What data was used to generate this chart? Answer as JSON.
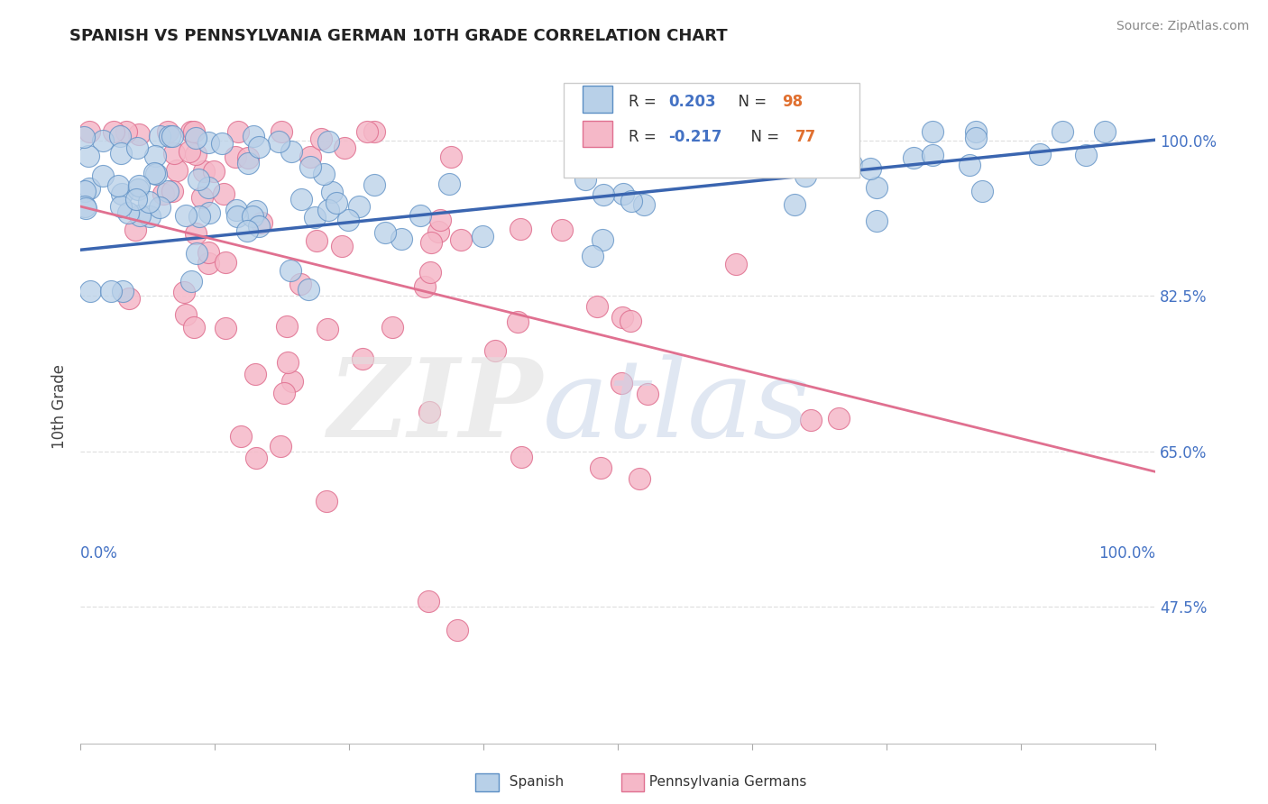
{
  "title": "SPANISH VS PENNSYLVANIA GERMAN 10TH GRADE CORRELATION CHART",
  "source": "Source: ZipAtlas.com",
  "ylabel": "10th Grade",
  "ytick_vals": [
    0.475,
    0.65,
    0.825,
    1.0
  ],
  "ytick_labels": [
    "47.5%",
    "65.0%",
    "82.5%",
    "100.0%"
  ],
  "xrange": [
    0.0,
    1.0
  ],
  "yrange": [
    0.32,
    1.08
  ],
  "legend_text_spanish": "R = ",
  "legend_r_spanish": "0.203",
  "legend_n_spanish": "N = 98",
  "legend_r_pagerman": "-0.217",
  "legend_n_pagerman": "N = 77",
  "spanish_fill": "#b8d0e8",
  "spanish_edge": "#5b8ec4",
  "pagerman_fill": "#f5b8c8",
  "pagerman_edge": "#e07090",
  "spanish_line_color": "#3a65b0",
  "pagerman_line_color": "#e07090",
  "background_color": "#ffffff",
  "grid_color": "#dddddd",
  "spanish_line_y0": 0.877,
  "spanish_line_y1": 1.001,
  "pagerman_line_y0": 0.926,
  "pagerman_line_y1": 0.627
}
